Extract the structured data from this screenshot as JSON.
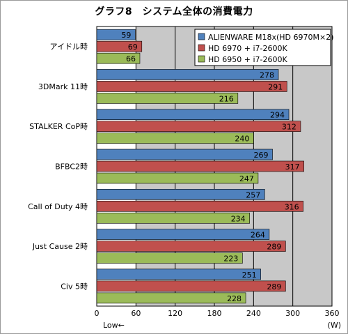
{
  "chart_data": {
    "type": "bar",
    "orientation": "horizontal",
    "title": "グラフ8　システム全体の消費電力",
    "categories": [
      "アイドル時",
      "3DMark 11時",
      "STALKER CoP時",
      "BFBC2時",
      "Call of Duty 4時",
      "Just Cause 2時",
      "Civ 5時"
    ],
    "series": [
      {
        "name": "ALIENWARE M18x(HD 6970M×2)",
        "color": "#4f81bd",
        "values": [
          59,
          278,
          294,
          269,
          257,
          264,
          251
        ]
      },
      {
        "name": "HD 6970 + i7-2600K",
        "color": "#c0504d",
        "values": [
          69,
          291,
          312,
          317,
          316,
          289,
          289
        ]
      },
      {
        "name": "HD 6950 + i7-2600K",
        "color": "#9bbb59",
        "values": [
          66,
          216,
          240,
          247,
          234,
          223,
          228
        ]
      }
    ],
    "xlim": [
      0,
      360
    ],
    "xticks": [
      0,
      60,
      120,
      180,
      240,
      300,
      360
    ],
    "xlabel_unit": "(W)",
    "x_direction_label": "Low←",
    "grid": true,
    "legend_position": "top-right"
  }
}
